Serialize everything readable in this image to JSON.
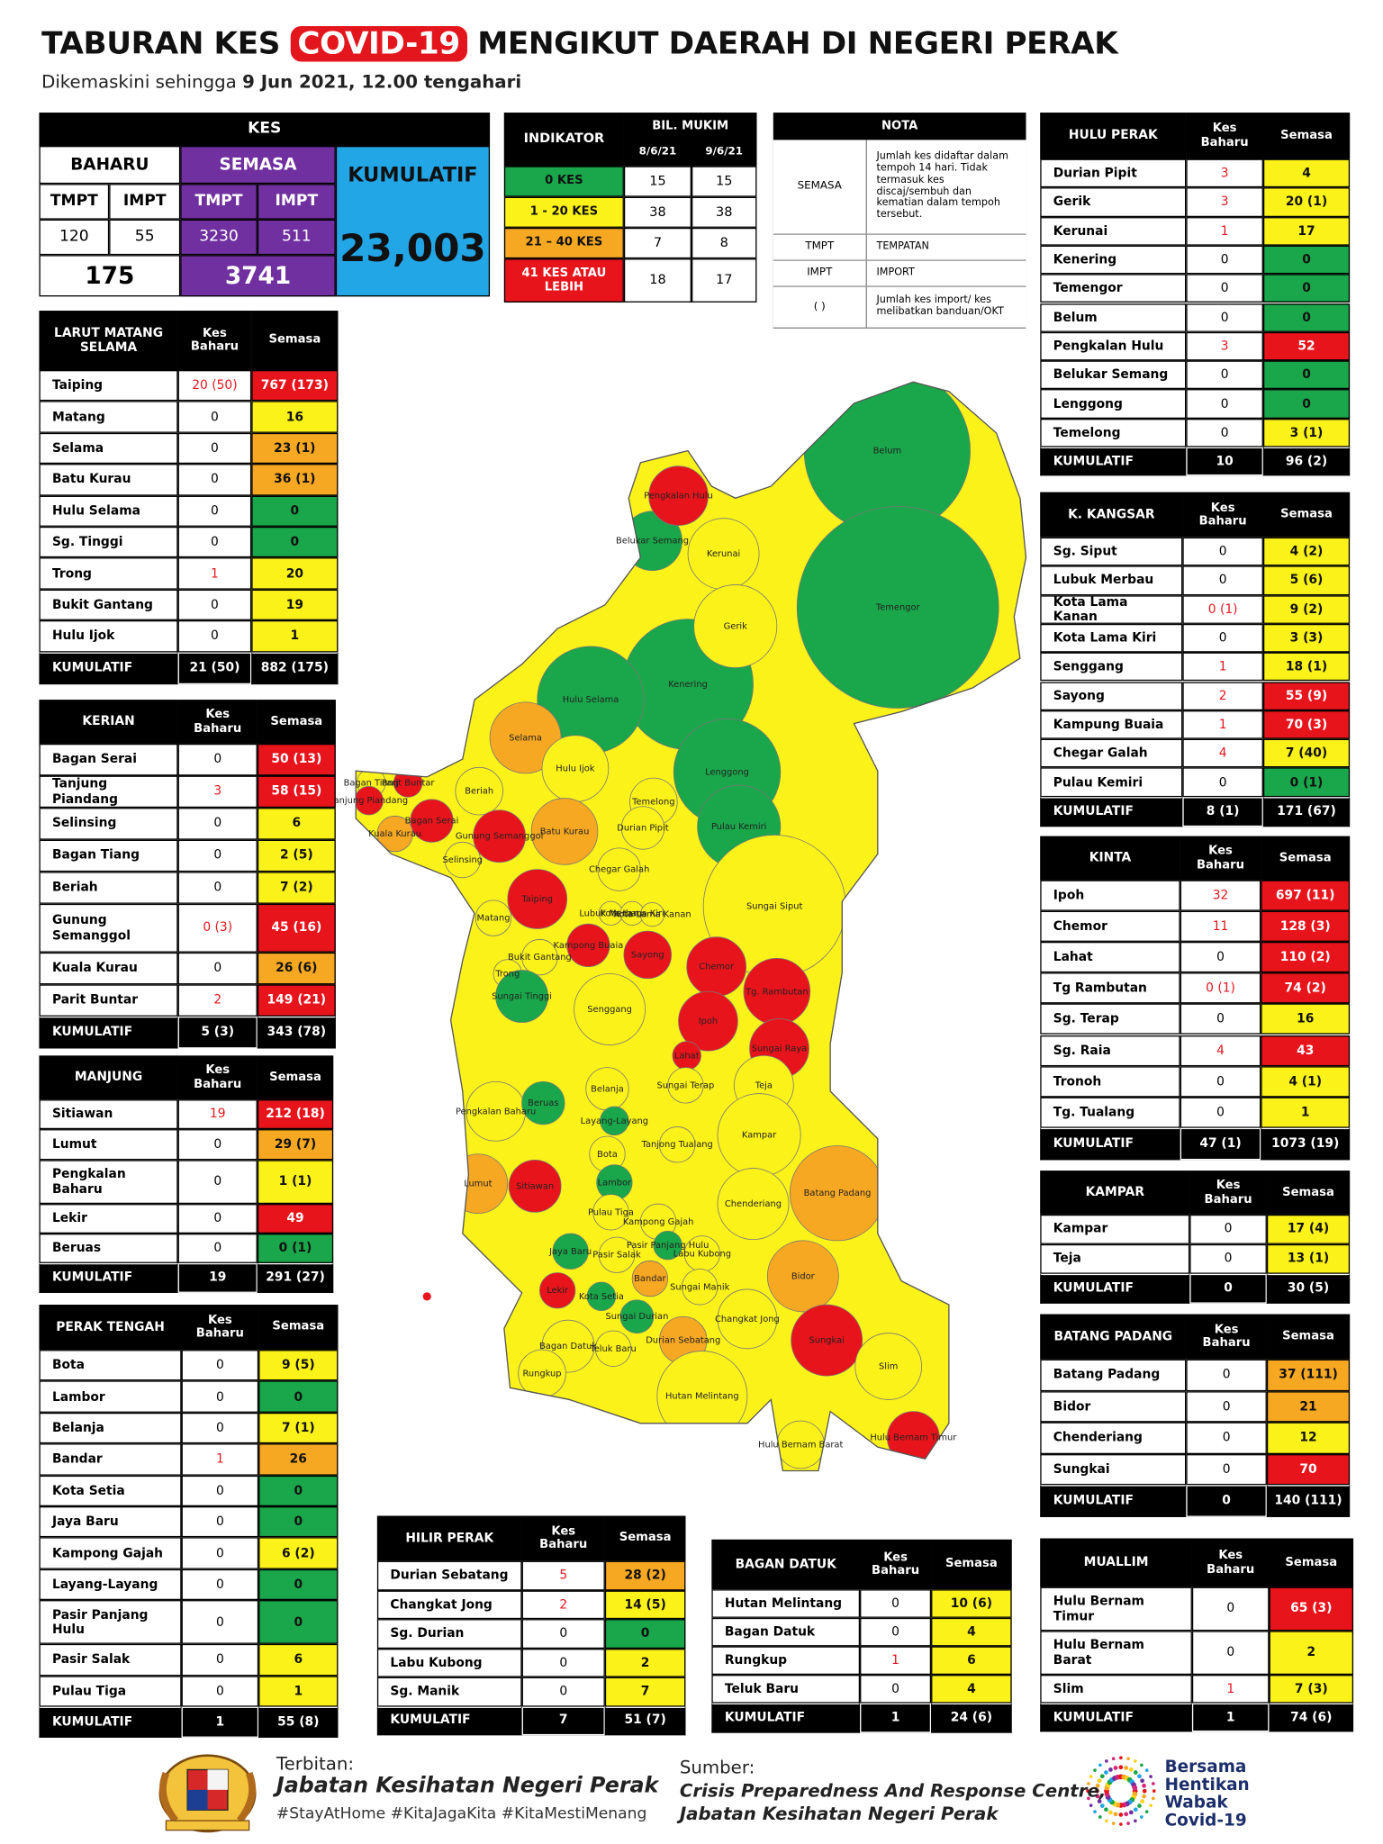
{
  "header": {
    "title_a": "TABURAN KES ",
    "title_b": "COVID-19",
    "title_c": " MENGIKUT DAERAH DI NEGERI PERAK",
    "subtitle_a": "Dikemaskini sehingga ",
    "subtitle_b": "9 Jun 2021, 12.00 tengahari"
  },
  "kes": {
    "title": "KES",
    "baharu": "BAHARU",
    "semasa": "SEMASA",
    "tmpt_1": "TMPT",
    "impt_1": "IMPT",
    "tmpt_2": "TMPT",
    "impt_2": "IMPT",
    "baharu_tmpt": 120,
    "baharu_impt": 55,
    "semasa_tmpt": 3230,
    "semasa_impt": 511,
    "baharu_total": 175,
    "semasa_total": 3741,
    "kumulatif_label": "KUMULATIF",
    "kumulatif": "23,003"
  },
  "indicator": {
    "title": "INDIKATOR",
    "group": "BIL. MUKIM",
    "date_1": "8/6/21",
    "date_2": "9/6/21",
    "rows": [
      {
        "label": "0 KES",
        "d1": 15,
        "d2": 15,
        "color": "#1aa64a",
        "text": "#111"
      },
      {
        "label": "1 - 20 KES",
        "d1": 38,
        "d2": 38,
        "color": "#fbf21a",
        "text": "#111"
      },
      {
        "label": "21 – 40 KES",
        "d1": 7,
        "d2": 8,
        "color": "#f7a823",
        "text": "#111"
      },
      {
        "label": "41 KES ATAU LEBIH",
        "d1": 18,
        "d2": 17,
        "color": "#e8141c",
        "text": "#fff"
      }
    ]
  },
  "nota": {
    "title": "NOTA",
    "rows": [
      [
        "SEMASA",
        "Jumlah kes didaftar dalam tempoh 14 hari. Tidak termasuk kes discaj/sembuh dan kematian dalam tempoh tersebut."
      ],
      [
        "TMPT",
        "TEMPATAN"
      ],
      [
        "IMPT",
        "IMPORT"
      ],
      [
        "( )",
        "Jumlah kes import/ kes melibatkan banduan/OKT"
      ]
    ]
  },
  "tables": [
    {
      "title": "LARUT MATANG SELAMA",
      "col_1": "Kes Baharu",
      "col_2": "Semasa",
      "rows": [
        [
          "Taiping",
          "20 (50)",
          "767 (173)",
          3
        ],
        [
          "Matang",
          0,
          16,
          1
        ],
        [
          "Selama",
          0,
          "23 (1)",
          2
        ],
        [
          "Batu Kurau",
          0,
          "36 (1)",
          2
        ],
        [
          "Hulu Selama",
          0,
          0,
          0
        ],
        [
          "Sg. Tinggi",
          0,
          0,
          0
        ],
        [
          "Trong",
          1,
          20,
          1
        ],
        [
          "Bukit Gantang",
          0,
          19,
          1
        ],
        [
          "Hulu Ijok",
          0,
          1,
          1
        ]
      ],
      "total": [
        "KUMULATIF",
        "21 (50)",
        "882 (175)"
      ]
    },
    {
      "title": "KERIAN",
      "col_1": "Kes Baharu",
      "col_2": "Semasa",
      "rows": [
        [
          "Bagan Serai",
          0,
          "50 (13)",
          3
        ],
        [
          "Tanjung Piandang",
          3,
          "58 (15)",
          3
        ],
        [
          "Selinsing",
          0,
          6,
          1
        ],
        [
          "Bagan Tiang",
          0,
          "2 (5)",
          1
        ],
        [
          "Beriah",
          0,
          "7 (2)",
          1
        ],
        [
          "Gunung Semanggol",
          "0 (3)",
          "45 (16)",
          3
        ],
        [
          "Kuala Kurau",
          0,
          "26 (6)",
          2
        ],
        [
          "Parit Buntar",
          2,
          "149 (21)",
          3
        ]
      ],
      "total": [
        "KUMULATIF",
        "5 (3)",
        "343 (78)"
      ]
    },
    {
      "title": "MANJUNG",
      "col_1": "Kes Baharu",
      "col_2": "Semasa",
      "rows": [
        [
          "Sitiawan",
          19,
          "212 (18)",
          3
        ],
        [
          "Lumut",
          0,
          "29 (7)",
          2
        ],
        [
          "Pengkalan Baharu",
          0,
          "1 (1)",
          1
        ],
        [
          "Lekir",
          0,
          49,
          3
        ],
        [
          "Beruas",
          0,
          "0 (1)",
          0
        ]
      ],
      "total": [
        "KUMULATIF",
        19,
        "291 (27)"
      ]
    },
    {
      "title": "PERAK TENGAH",
      "col_1": "Kes Baharu",
      "col_2": "Semasa",
      "rows": [
        [
          "Bota",
          0,
          "9 (5)",
          1
        ],
        [
          "Lambor",
          0,
          0,
          0
        ],
        [
          "Belanja",
          0,
          "7 (1)",
          1
        ],
        [
          "Bandar",
          1,
          26,
          2
        ],
        [
          "Kota Setia",
          0,
          0,
          0
        ],
        [
          "Jaya Baru",
          0,
          0,
          0
        ],
        [
          "Kampong Gajah",
          0,
          "6 (2)",
          1
        ],
        [
          "Layang-Layang",
          0,
          0,
          0
        ],
        [
          "Pasir Panjang Hulu",
          0,
          0,
          0
        ],
        [
          "Pasir Salak",
          0,
          6,
          1
        ],
        [
          "Pulau Tiga",
          0,
          1,
          1
        ]
      ],
      "total": [
        "KUMULATIF",
        1,
        "55 (8)"
      ]
    },
    {
      "title": "HILIR PERAK",
      "col_1": "Kes Baharu",
      "col_2": "Semasa",
      "rows": [
        [
          "Durian Sebatang",
          5,
          "28 (2)",
          2
        ],
        [
          "Changkat Jong",
          2,
          "14 (5)",
          1
        ],
        [
          "Sg. Durian",
          0,
          0,
          0
        ],
        [
          "Labu Kubong",
          0,
          2,
          1
        ],
        [
          "Sg. Manik",
          0,
          7,
          1
        ]
      ],
      "total": [
        "KUMULATIF",
        7,
        "51 (7)"
      ]
    },
    {
      "title": "BAGAN DATUK",
      "col_1": "Kes Baharu",
      "col_2": "Semasa",
      "rows": [
        [
          "Hutan Melintang",
          0,
          "10 (6)",
          1
        ],
        [
          "Bagan Datuk",
          0,
          4,
          1
        ],
        [
          "Rungkup",
          1,
          6,
          1
        ],
        [
          "Teluk Baru",
          0,
          4,
          1
        ]
      ],
      "total": [
        "KUMULATIF",
        1,
        "24 (6)"
      ]
    },
    {
      "title": "HULU PERAK",
      "col_1": "Kes Baharu",
      "col_2": "Semasa",
      "rows": [
        [
          "Durian Pipit",
          3,
          4,
          1
        ],
        [
          "Gerik",
          3,
          "20 (1)",
          1
        ],
        [
          "Kerunai",
          1,
          17,
          1
        ],
        [
          "Kenering",
          0,
          0,
          0
        ],
        [
          "Temengor",
          0,
          0,
          0
        ],
        [
          "Belum",
          0,
          0,
          0
        ],
        [
          "Pengkalan Hulu",
          3,
          52,
          3
        ],
        [
          "Belukar Semang",
          0,
          0,
          0
        ],
        [
          "Lenggong",
          0,
          0,
          0
        ],
        [
          "Temelong",
          0,
          "3 (1)",
          1
        ]
      ],
      "total": [
        "KUMULATIF",
        10,
        "96 (2)"
      ]
    },
    {
      "title": "K. KANGSAR",
      "col_1": "Kes Baharu",
      "col_2": "Semasa",
      "rows": [
        [
          "Sg. Siput",
          0,
          "4 (2)",
          1
        ],
        [
          "Lubuk Merbau",
          0,
          "5 (6)",
          1
        ],
        [
          "Kota Lama Kanan",
          "0 (1)",
          "9 (2)",
          1
        ],
        [
          "Kota Lama Kiri",
          0,
          "3 (3)",
          1
        ],
        [
          "Senggang",
          1,
          "18 (1)",
          1
        ],
        [
          "Sayong",
          2,
          "55 (9)",
          3
        ],
        [
          "Kampung Buaia",
          1,
          "70 (3)",
          3
        ],
        [
          "Chegar Galah",
          4,
          "7 (40)",
          1
        ],
        [
          "Pulau Kemiri",
          0,
          "0 (1)",
          0
        ]
      ],
      "total": [
        "KUMULATIF",
        "8 (1)",
        "171 (67)"
      ]
    },
    {
      "title": "KINTA",
      "col_1": "Kes Baharu",
      "col_2": "Semasa",
      "rows": [
        [
          "Ipoh",
          32,
          "697 (11)",
          3
        ],
        [
          "Chemor",
          11,
          "128 (3)",
          3
        ],
        [
          "Lahat",
          0,
          "110 (2)",
          3
        ],
        [
          "Tg Rambutan",
          "0 (1)",
          "74 (2)",
          3
        ],
        [
          "Sg. Terap",
          0,
          16,
          1
        ],
        [
          "Sg. Raia",
          4,
          43,
          3
        ],
        [
          "Tronoh",
          0,
          "4 (1)",
          1
        ],
        [
          "Tg. Tualang",
          0,
          1,
          1
        ]
      ],
      "total": [
        "KUMULATIF",
        "47 (1)",
        "1073 (19)"
      ]
    },
    {
      "title": "KAMPAR",
      "col_1": "Kes Baharu",
      "col_2": "Semasa",
      "rows": [
        [
          "Kampar",
          0,
          "17 (4)",
          1
        ],
        [
          "Teja",
          0,
          "13 (1)",
          1
        ]
      ],
      "total": [
        "KUMULATIF",
        0,
        "30 (5)"
      ]
    },
    {
      "title": "BATANG PADANG",
      "col_1": "Kes Baharu",
      "col_2": "Semasa",
      "rows": [
        [
          "Batang Padang",
          0,
          "37 (111)",
          2
        ],
        [
          "Bidor",
          0,
          21,
          2
        ],
        [
          "Chenderiang",
          0,
          12,
          1
        ],
        [
          "Sungkai",
          0,
          70,
          3
        ]
      ],
      "total": [
        "KUMULATIF",
        0,
        "140 (111)"
      ]
    },
    {
      "title": "MUALLIM",
      "col_1": "Kes Baharu",
      "col_2": "Semasa",
      "rows": [
        [
          "Hulu Bernam Timur",
          0,
          "65 (3)",
          3
        ],
        [
          "Hulu Bernam Barat",
          0,
          2,
          1
        ],
        [
          "Slim",
          1,
          "7 (3)",
          1
        ]
      ],
      "total": [
        "KUMULATIF",
        1,
        "74 (6)"
      ]
    }
  ],
  "map": {
    "regions": [
      [
        "Belum",
        0
      ],
      [
        "Temengor",
        0
      ],
      [
        "Kenering",
        0
      ],
      [
        "Hulu Selama",
        0
      ],
      [
        "Lenggong",
        0
      ],
      [
        "Belukar Semang",
        0
      ],
      [
        "Pulau Kemiri",
        0
      ],
      [
        "Kerunai",
        1
      ],
      [
        "Gerik",
        1
      ],
      [
        "Pengkalan Hulu",
        3
      ],
      [
        "Selama",
        2
      ],
      [
        "Hulu Ijok",
        1
      ],
      [
        "Bagan Tiang",
        1
      ],
      [
        "Parit Buntar",
        3
      ],
      [
        "Tanjung Piandang",
        3
      ],
      [
        "Beriah",
        1
      ],
      [
        "Temelong",
        1
      ],
      [
        "Bagan Serai",
        3
      ],
      [
        "Gunung Semanggol",
        3
      ],
      [
        "Batu Kurau",
        2
      ],
      [
        "Durian Pipit",
        1
      ],
      [
        "Kuala Kurau",
        2
      ],
      [
        "Selinsing",
        1
      ],
      [
        "Chegar Galah",
        1
      ],
      [
        "Taiping",
        3
      ],
      [
        "Sungai Siput",
        1
      ],
      [
        "Lubuk Merbau",
        1
      ],
      [
        "Kota Lama Kiri",
        1
      ],
      [
        "Kota Lama Kanan",
        1
      ],
      [
        "Matang",
        1
      ],
      [
        "Kampong Buaia",
        3
      ],
      [
        "Sayong",
        3
      ],
      [
        "Bukit Gantang",
        1
      ],
      [
        "Trong",
        1
      ],
      [
        "Chemor",
        3
      ],
      [
        "Tg. Rambutan",
        3
      ],
      [
        "Sungai Tinggi",
        0
      ],
      [
        "Senggang",
        1
      ],
      [
        "Ipoh",
        3
      ],
      [
        "Sungai Raya",
        3
      ],
      [
        "Lahat",
        3
      ],
      [
        "Teja",
        1
      ],
      [
        "Pengkalan Baharu",
        1
      ],
      [
        "Beruas",
        0
      ],
      [
        "Belanja",
        1
      ],
      [
        "Sungai Terap",
        1
      ],
      [
        "Layang-Layang",
        0
      ],
      [
        "Kampar",
        1
      ],
      [
        "Tanjong Tualang",
        1
      ],
      [
        "Bota",
        1
      ],
      [
        "Lumut",
        2
      ],
      [
        "Sitiawan",
        3
      ],
      [
        "Lambor",
        0
      ],
      [
        "Batang Padang",
        2
      ],
      [
        "Chenderiang",
        1
      ],
      [
        "Pulau Tiga",
        1
      ],
      [
        "Kampong Gajah",
        1
      ],
      [
        "Pasir Panjang Hulu",
        0
      ],
      [
        "Labu Kubong",
        1
      ],
      [
        "Jaya Baru",
        0
      ],
      [
        "Pasir Salak",
        1
      ],
      [
        "Bidor",
        2
      ],
      [
        "Bandar",
        2
      ],
      [
        "Sungai Manik",
        1
      ],
      [
        "Lekir",
        3
      ],
      [
        "Kota Setia",
        0
      ],
      [
        "Changkat Jong",
        1
      ],
      [
        "Sungai Durian",
        0
      ],
      [
        "Sungkai",
        3
      ],
      [
        "Durian Sebatang",
        2
      ],
      [
        "Bagan Datuk",
        1
      ],
      [
        "Teluk Baru",
        1
      ],
      [
        "Slim",
        1
      ],
      [
        "Rungkup",
        1
      ],
      [
        "Hutan Melintang",
        1
      ],
      [
        "Hulu Bernam Timur",
        3
      ],
      [
        "Hulu Bernam Barat",
        1
      ]
    ]
  },
  "footer": {
    "terbitan": "Terbitan:",
    "publisher": "Jabatan Kesihatan Negeri Perak",
    "hashtags": "#StayAtHome #KitaJagaKita #KitaMestiMenang",
    "sumber": "Sumber:",
    "source_1": "Crisis Preparedness And Response Centre,",
    "source_2": "Jabatan Kesihatan Negeri Perak",
    "logo_text": [
      "Bersama",
      "Hentikan",
      "Wabak",
      "Covid-19"
    ]
  }
}
